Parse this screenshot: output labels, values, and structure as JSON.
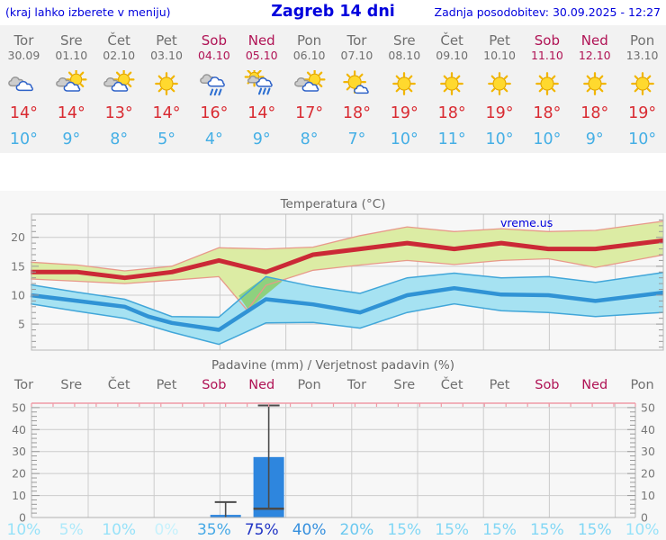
{
  "header": {
    "menu_note": "(kraj lahko izberete v meniju)",
    "title": "Zagreb 14 dni",
    "last_update": "Zadnja posodobitev: 30.09.2025 - 12:27"
  },
  "colors": {
    "link_blue": "#0000dd",
    "weekday": "#6f6f6f",
    "weekend": "#b01355",
    "tmax_red": "#d92b32",
    "tmin_blue": "#45afe5",
    "strip_bg": "#f2f2f2",
    "panel_bg": "#f7f7f7",
    "grid": "#cccccc",
    "axis_text": "#777777",
    "temp_line_max": "#cb2936",
    "temp_band_max_fill": "#dceca4",
    "temp_band_max_border": "#e8998a",
    "temp_line_min": "#3093d5",
    "temp_band_min_fill": "#a6e2f2",
    "temp_band_min_border": "#41a6d9",
    "band_overlap_fill": "#8ed17e",
    "precip_bar": "#2e86de",
    "whisker": "#4a4a4a",
    "precip_top_axis": "#ef9aa6"
  },
  "forecast": {
    "days": [
      {
        "name": "Tor",
        "date": "30.09",
        "weekend": false,
        "icon": "cloudy",
        "tmax": "14°",
        "tmin": "10°"
      },
      {
        "name": "Sre",
        "date": "01.10",
        "weekend": false,
        "icon": "partly-cloudy",
        "tmax": "14°",
        "tmin": "9°"
      },
      {
        "name": "Čet",
        "date": "02.10",
        "weekend": false,
        "icon": "partly-cloudy",
        "tmax": "13°",
        "tmin": "8°"
      },
      {
        "name": "Pet",
        "date": "03.10",
        "weekend": false,
        "icon": "sunny",
        "tmax": "14°",
        "tmin": "5°"
      },
      {
        "name": "Sob",
        "date": "04.10",
        "weekend": true,
        "icon": "rain",
        "tmax": "16°",
        "tmin": "4°"
      },
      {
        "name": "Ned",
        "date": "05.10",
        "weekend": true,
        "icon": "sun-rain",
        "tmax": "14°",
        "tmin": "9°"
      },
      {
        "name": "Pon",
        "date": "06.10",
        "weekend": false,
        "icon": "partly-cloudy",
        "tmax": "17°",
        "tmin": "8°"
      },
      {
        "name": "Tor",
        "date": "07.10",
        "weekend": false,
        "icon": "mostly-sunny",
        "tmax": "18°",
        "tmin": "7°"
      },
      {
        "name": "Sre",
        "date": "08.10",
        "weekend": false,
        "icon": "sunny",
        "tmax": "19°",
        "tmin": "10°"
      },
      {
        "name": "Čet",
        "date": "09.10",
        "weekend": false,
        "icon": "sunny",
        "tmax": "18°",
        "tmin": "11°"
      },
      {
        "name": "Pet",
        "date": "10.10",
        "weekend": false,
        "icon": "sunny",
        "tmax": "19°",
        "tmin": "10°"
      },
      {
        "name": "Sob",
        "date": "11.10",
        "weekend": true,
        "icon": "sunny",
        "tmax": "18°",
        "tmin": "10°"
      },
      {
        "name": "Ned",
        "date": "12.10",
        "weekend": true,
        "icon": "sunny",
        "tmax": "18°",
        "tmin": "9°"
      },
      {
        "name": "Pon",
        "date": "13.10",
        "weekend": false,
        "icon": "sunny",
        "tmax": "19°",
        "tmin": "10°"
      }
    ]
  },
  "chart_data": [
    {
      "type": "area",
      "title": "Temperatura (°C)",
      "watermark": "vreme.us",
      "x_unit": "day_index_0_to_13",
      "ylim": [
        0.5,
        24
      ],
      "yticks": [
        5,
        10,
        15,
        20
      ],
      "series": [
        {
          "name": "max_temp",
          "points": [
            [
              0,
              14
            ],
            [
              1,
              14
            ],
            [
              2,
              13
            ],
            [
              3,
              14
            ],
            [
              4,
              16
            ],
            [
              5,
              14
            ],
            [
              6,
              17
            ],
            [
              7,
              18
            ],
            [
              8,
              19
            ],
            [
              9,
              18
            ],
            [
              10,
              19
            ],
            [
              11,
              18
            ],
            [
              12,
              18
            ],
            [
              13,
              19
            ]
          ]
        },
        {
          "name": "max_temp_range_upper",
          "points": [
            [
              0,
              15.7
            ],
            [
              1,
              15.2
            ],
            [
              2,
              14.2
            ],
            [
              3,
              15.0
            ],
            [
              4,
              18.2
            ],
            [
              5,
              18.0
            ],
            [
              6,
              18.3
            ],
            [
              7,
              20.3
            ],
            [
              8,
              21.8
            ],
            [
              9,
              21.0
            ],
            [
              10,
              21.5
            ],
            [
              11,
              21.0
            ],
            [
              12,
              21.2
            ],
            [
              13,
              22.3
            ]
          ]
        },
        {
          "name": "max_temp_range_lower",
          "points": [
            [
              0,
              12.8
            ],
            [
              1,
              12.4
            ],
            [
              2,
              12.0
            ],
            [
              3,
              12.6
            ],
            [
              4,
              13.2
            ],
            [
              4.6,
              7.4
            ],
            [
              5,
              11.7
            ],
            [
              6,
              14.3
            ],
            [
              7,
              15.2
            ],
            [
              8,
              16.0
            ],
            [
              9,
              15.3
            ],
            [
              10,
              16.0
            ],
            [
              11,
              16.3
            ],
            [
              12,
              14.8
            ],
            [
              13,
              16.3
            ]
          ]
        },
        {
          "name": "min_temp",
          "points": [
            [
              0,
              10
            ],
            [
              1,
              9
            ],
            [
              2,
              8
            ],
            [
              2.5,
              6.3
            ],
            [
              3,
              5.2
            ],
            [
              4,
              4
            ],
            [
              5,
              9.3
            ],
            [
              6,
              8.4
            ],
            [
              7,
              7
            ],
            [
              8,
              10
            ],
            [
              9,
              11.2
            ],
            [
              10,
              10.1
            ],
            [
              11,
              10
            ],
            [
              12,
              9
            ],
            [
              13,
              10
            ]
          ]
        },
        {
          "name": "min_temp_range_upper",
          "points": [
            [
              0,
              11.8
            ],
            [
              1,
              10.5
            ],
            [
              2,
              9.3
            ],
            [
              3,
              6.3
            ],
            [
              4,
              6.2
            ],
            [
              5,
              13.2
            ],
            [
              6,
              11.5
            ],
            [
              7,
              10.3
            ],
            [
              8,
              13.0
            ],
            [
              9,
              13.8
            ],
            [
              10,
              13.0
            ],
            [
              11,
              13.2
            ],
            [
              12,
              12.2
            ],
            [
              13,
              13.4
            ]
          ]
        },
        {
          "name": "min_temp_range_lower",
          "points": [
            [
              0,
              8.5
            ],
            [
              1,
              7.2
            ],
            [
              2,
              6.0
            ],
            [
              2.5,
              4.8
            ],
            [
              3,
              3.6
            ],
            [
              4,
              1.5
            ],
            [
              5,
              5.2
            ],
            [
              6,
              5.3
            ],
            [
              7,
              4.3
            ],
            [
              8,
              7.0
            ],
            [
              9,
              8.5
            ],
            [
              10,
              7.3
            ],
            [
              11,
              7.0
            ],
            [
              12,
              6.3
            ],
            [
              13,
              6.8
            ]
          ]
        }
      ],
      "overlap_region": [
        [
          4.42,
          9.9
        ],
        [
          5.0,
          13.2
        ],
        [
          5.35,
          12.4
        ],
        [
          4.62,
          7.5
        ]
      ]
    },
    {
      "type": "bar",
      "title": "Padavine (mm) / Verjetnost padavin (%)",
      "categories": [
        "Tor",
        "Sre",
        "Čet",
        "Pet",
        "Sob",
        "Ned",
        "Pon",
        "Tor",
        "Sre",
        "Čet",
        "Pet",
        "Sob",
        "Ned",
        "Pon"
      ],
      "weekend": [
        false,
        false,
        false,
        false,
        true,
        true,
        false,
        false,
        false,
        false,
        false,
        true,
        true,
        false
      ],
      "precip_mm": [
        0,
        0,
        0,
        0,
        1.2,
        27.5,
        0,
        0,
        0,
        0,
        0,
        0,
        0,
        0
      ],
      "precip_range_mm": [
        null,
        null,
        null,
        null,
        [
          0,
          7
        ],
        [
          4,
          51
        ],
        null,
        null,
        null,
        null,
        null,
        null,
        null,
        null
      ],
      "probability": [
        "10%",
        "5%",
        "10%",
        "0%",
        "35%",
        "75%",
        "40%",
        "20%",
        "15%",
        "15%",
        "15%",
        "15%",
        "15%",
        "10%"
      ],
      "probability_colors": [
        "#97e2f9",
        "#aee9fa",
        "#97e2f9",
        "#c6f1fc",
        "#46a9e6",
        "#2135c5",
        "#3690de",
        "#6cc9f0",
        "#82d7f5",
        "#82d7f5",
        "#82d7f5",
        "#82d7f5",
        "#82d7f5",
        "#97e2f9"
      ],
      "ylim": [
        0,
        52
      ],
      "yticks": [
        0,
        10,
        20,
        30,
        40,
        50
      ],
      "y_axis_sides": "both"
    }
  ]
}
